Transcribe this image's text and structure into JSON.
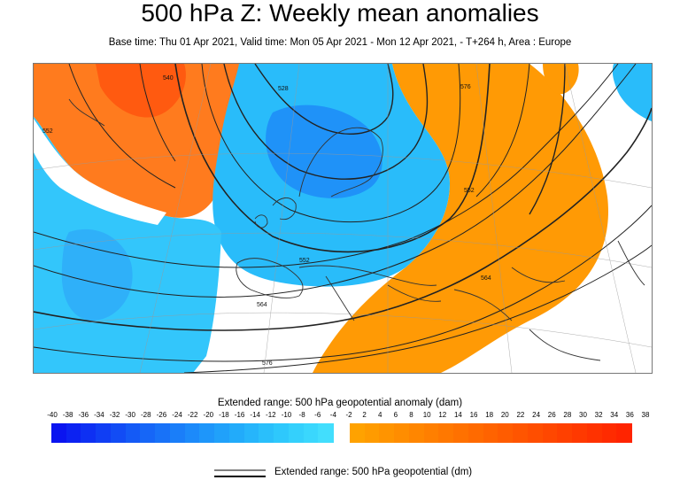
{
  "header": {
    "title": "500 hPa Z: Weekly mean anomalies",
    "subtitle": "Base time: Thu 01 Apr 2021, Valid time: Mon 05 Apr 2021 - Mon 12 Apr 2021, - T+264 h, Area : Europe"
  },
  "map": {
    "area": "Europe",
    "contour_labels": [
      "552",
      "552",
      "564",
      "564",
      "576",
      "576",
      "528",
      "540",
      "552"
    ]
  },
  "legend": {
    "title": "Extended range: 500 hPa geopotential anomaly (dam)",
    "ticks": [
      "-40",
      "-38",
      "-36",
      "-34",
      "-32",
      "-30",
      "-28",
      "-26",
      "-24",
      "-22",
      "-20",
      "-18",
      "-16",
      "-14",
      "-12",
      "-10",
      "-8",
      "-6",
      "-4",
      "-2",
      "2",
      "4",
      "6",
      "8",
      "10",
      "12",
      "14",
      "16",
      "18",
      "20",
      "22",
      "24",
      "26",
      "28",
      "30",
      "32",
      "34",
      "36",
      "38"
    ],
    "negative_colors": [
      "#0a14f0",
      "#0c22f2",
      "#0e30f3",
      "#103ef4",
      "#124cf5",
      "#145af6",
      "#1666f7",
      "#1872f8",
      "#1a7ef9",
      "#1c8afa",
      "#1e96fa",
      "#20a1fa",
      "#22abfa",
      "#26b5fb",
      "#2abffb",
      "#2ec8fc",
      "#34d0fc",
      "#3ad7fd",
      "#42defd"
    ],
    "positive_colors": [
      "#ffa200",
      "#ff9b00",
      "#ff9400",
      "#ff8d00",
      "#ff8600",
      "#ff7f00",
      "#ff7800",
      "#ff7100",
      "#ff6a00",
      "#ff6300",
      "#ff5c00",
      "#ff5500",
      "#ff4e00",
      "#ff4700",
      "#ff4000",
      "#ff3900",
      "#ff3200",
      "#ff2b00",
      "#ff2400"
    ]
  },
  "legend2": {
    "label": "Extended range: 500 hPa geopotential (dm)"
  }
}
